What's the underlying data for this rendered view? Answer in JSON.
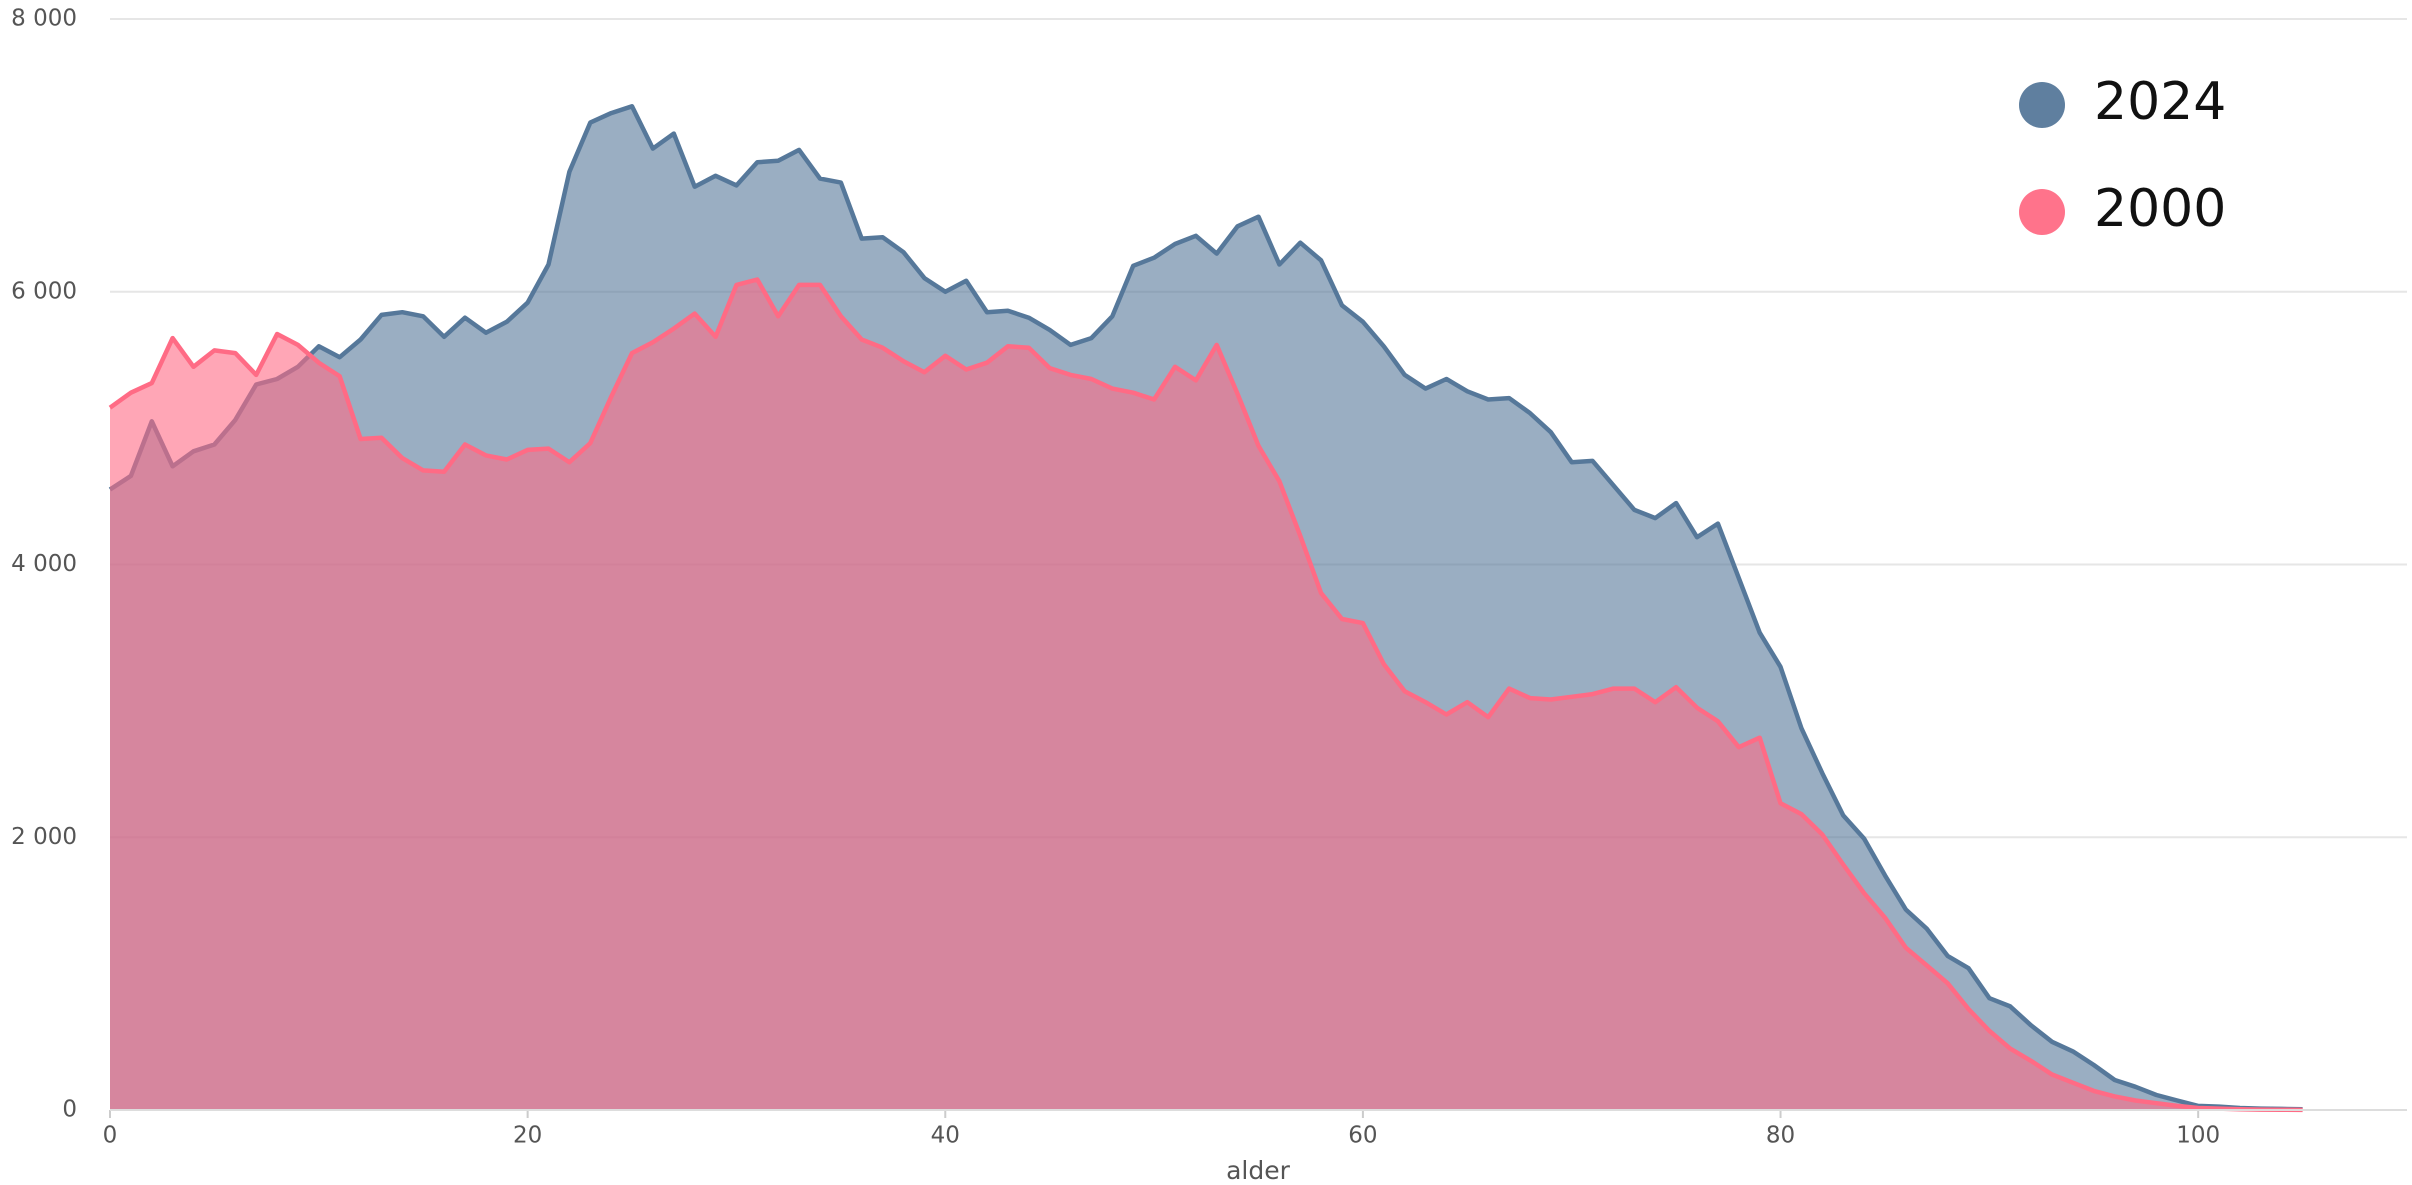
{
  "chart_data": {
    "type": "area",
    "x_label": "alder",
    "x": [
      0,
      1,
      2,
      3,
      4,
      5,
      6,
      7,
      8,
      9,
      10,
      11,
      12,
      13,
      14,
      15,
      16,
      17,
      18,
      19,
      20,
      21,
      22,
      23,
      24,
      25,
      26,
      27,
      28,
      29,
      30,
      31,
      32,
      33,
      34,
      35,
      36,
      37,
      38,
      39,
      40,
      41,
      42,
      43,
      44,
      45,
      46,
      47,
      48,
      49,
      50,
      51,
      52,
      53,
      54,
      55,
      56,
      57,
      58,
      59,
      60,
      61,
      62,
      63,
      64,
      65,
      66,
      67,
      68,
      69,
      70,
      71,
      72,
      73,
      74,
      75,
      76,
      77,
      78,
      79,
      80,
      81,
      82,
      83,
      84,
      85,
      86,
      87,
      88,
      89,
      90,
      91,
      92,
      93,
      94,
      95,
      96,
      97,
      98,
      99,
      100,
      101,
      102,
      103,
      104,
      105
    ],
    "series": [
      {
        "name": "2024",
        "color": "#56789a",
        "values": [
          4550,
          4650,
          5050,
          4720,
          4830,
          4880,
          5060,
          5320,
          5360,
          5450,
          5600,
          5520,
          5650,
          5830,
          5850,
          5820,
          5670,
          5810,
          5700,
          5780,
          5920,
          6200,
          6880,
          7240,
          7310,
          7360,
          7050,
          7160,
          6770,
          6850,
          6780,
          6950,
          6960,
          7040,
          6830,
          6800,
          6390,
          6400,
          6290,
          6100,
          6000,
          6080,
          5850,
          5860,
          5810,
          5720,
          5610,
          5660,
          5820,
          6190,
          6250,
          6350,
          6410,
          6280,
          6480,
          6550,
          6200,
          6360,
          6230,
          5900,
          5780,
          5600,
          5390,
          5290,
          5360,
          5270,
          5210,
          5220,
          5110,
          4970,
          4750,
          4760,
          4580,
          4400,
          4340,
          4450,
          4200,
          4300,
          3900,
          3500,
          3250,
          2800,
          2470,
          2160,
          1990,
          1720,
          1470,
          1330,
          1130,
          1040,
          820,
          760,
          620,
          500,
          430,
          330,
          220,
          170,
          110,
          70,
          30,
          25,
          15,
          10,
          8,
          5
        ]
      },
      {
        "name": "2000",
        "color": "#ff6b85",
        "values": [
          5150,
          5260,
          5330,
          5660,
          5450,
          5570,
          5550,
          5390,
          5690,
          5610,
          5480,
          5380,
          4920,
          4930,
          4780,
          4690,
          4680,
          4880,
          4800,
          4770,
          4840,
          4850,
          4750,
          4890,
          5230,
          5550,
          5630,
          5730,
          5840,
          5670,
          6050,
          6090,
          5820,
          6050,
          6050,
          5820,
          5650,
          5590,
          5490,
          5410,
          5530,
          5430,
          5480,
          5600,
          5590,
          5440,
          5390,
          5360,
          5290,
          5260,
          5210,
          5450,
          5350,
          5610,
          5250,
          4870,
          4610,
          4210,
          3790,
          3600,
          3570,
          3270,
          3070,
          2990,
          2900,
          2990,
          2880,
          3090,
          3020,
          3010,
          3030,
          3050,
          3090,
          3090,
          2990,
          3100,
          2950,
          2850,
          2660,
          2730,
          2250,
          2170,
          2020,
          1800,
          1590,
          1410,
          1190,
          1060,
          930,
          740,
          580,
          450,
          360,
          260,
          200,
          140,
          100,
          70,
          50,
          30,
          15,
          10,
          5,
          3,
          2,
          1
        ]
      }
    ],
    "xlim": [
      0,
      110
    ],
    "xticks": [
      0,
      20,
      40,
      60,
      80,
      100
    ],
    "ylim": [
      0,
      8000
    ],
    "yticks": [
      0,
      {
        "value": 2000,
        "label": "2 000"
      },
      {
        "value": 4000,
        "label": "4 000"
      },
      {
        "value": 6000,
        "label": "6 000"
      },
      {
        "value": 8000,
        "label": "8 000"
      }
    ],
    "grid": true,
    "legend": "upper right"
  }
}
